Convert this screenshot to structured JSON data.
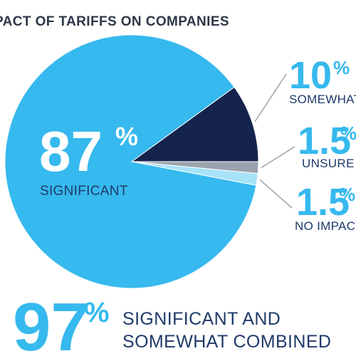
{
  "colors": {
    "significant": "#36b9ee",
    "somewhat": "#14244d",
    "unsure": "#9aa3ad",
    "no_impact": "#a6e2f8",
    "text_dark": "#1f3a68",
    "accent": "#36b9ee"
  },
  "chart_data": {
    "type": "pie",
    "title": "PACT OF TARIFFS ON COMPANIES",
    "slices": [
      {
        "label": "SIGNIFICANT",
        "value": 87,
        "display": "87",
        "unit": "%"
      },
      {
        "label": "SOMEWHAT",
        "value": 10,
        "display": "10",
        "unit": "%"
      },
      {
        "label": "UNSURE",
        "value": 1.5,
        "display": "1.5",
        "unit": "%"
      },
      {
        "label": "NO IMPACT",
        "value": 1.5,
        "display": "1.5",
        "unit": "%"
      }
    ]
  },
  "summary": {
    "value": "97",
    "unit": "%",
    "line1": "SIGNIFICANT AND",
    "line2": "SOMEWHAT COMBINED"
  }
}
